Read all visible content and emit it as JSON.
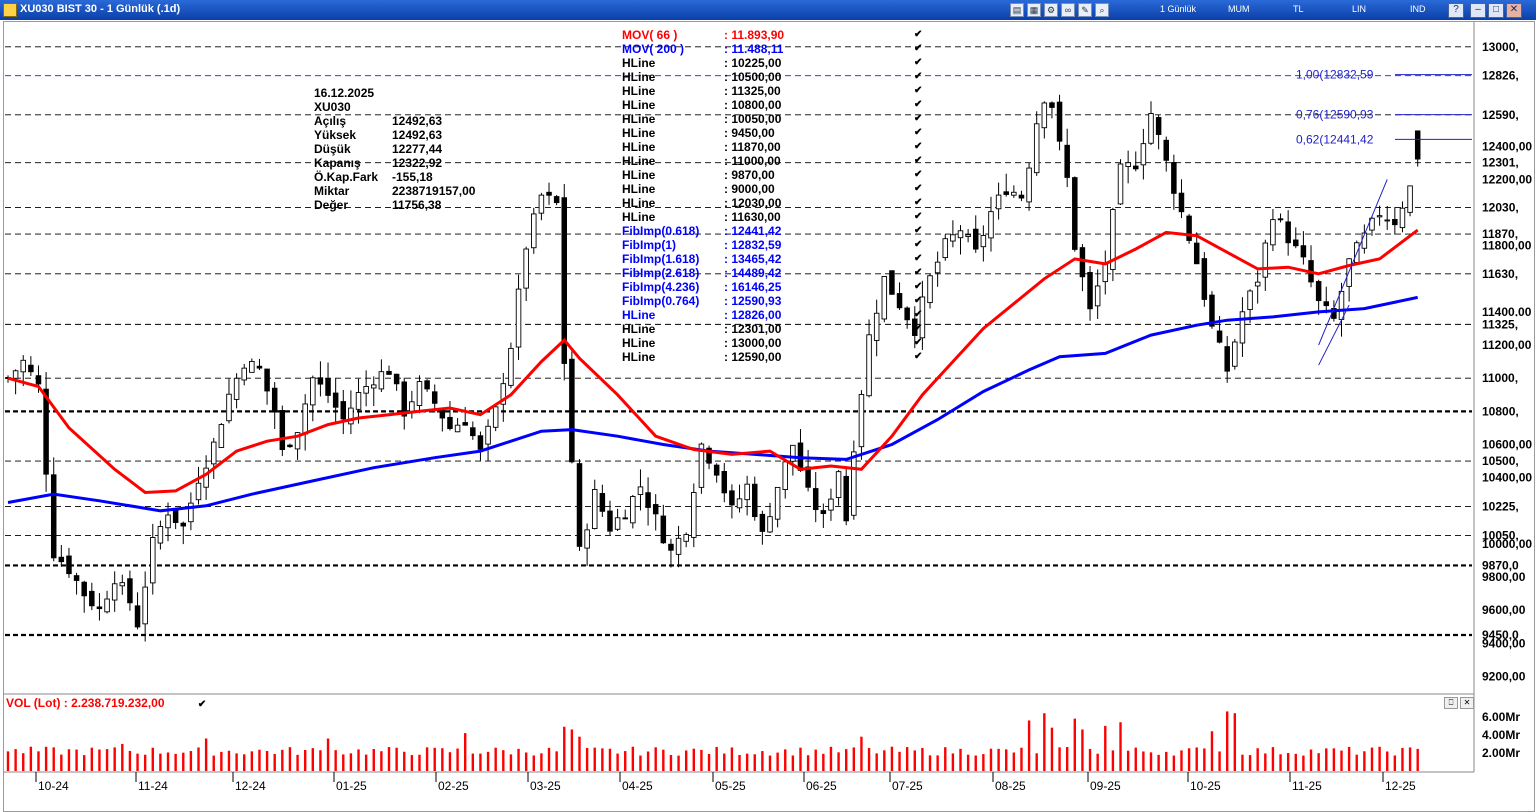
{
  "window": {
    "title": "XU030 BIST 30 - 1 Günlük (.1d)",
    "menu": [
      "1 Günlük",
      "MUM",
      "TL",
      "LIN",
      "IND"
    ]
  },
  "colors": {
    "candle": "#000000",
    "mov66": "#ff0000",
    "mov200": "#0000ff",
    "volume": "#ff0000",
    "fib": "#2020c8"
  },
  "info_panel": {
    "date": "16.12.2025",
    "symbol": "XU030",
    "rows": [
      {
        "label": "Açılış",
        "value": "12492,63"
      },
      {
        "label": "Yüksek",
        "value": "12492,63"
      },
      {
        "label": "Düşük",
        "value": "12277,44"
      },
      {
        "label": "Kapanış",
        "value": "12322,92"
      },
      {
        "label": "Ö.Kap.Fark",
        "value": "-155,18"
      },
      {
        "label": "Miktar",
        "value": "2238719157,00"
      },
      {
        "label": "Değer",
        "value": "11756,38"
      }
    ]
  },
  "legend": [
    {
      "label": "MOV( 66 )",
      "value": ": 11.893,90",
      "color": "#ff0000"
    },
    {
      "label": "MOV( 200 )",
      "value": ": 11.488,11",
      "color": "#0000ff"
    },
    {
      "label": "HLine",
      "value": ": 10225,00",
      "color": "#000000"
    },
    {
      "label": "HLine",
      "value": ": 10500,00",
      "color": "#000000"
    },
    {
      "label": "HLine",
      "value": ": 11325,00",
      "color": "#000000"
    },
    {
      "label": "HLine",
      "value": ": 10800,00",
      "color": "#000000"
    },
    {
      "label": "HLine",
      "value": ": 10050,00",
      "color": "#000000"
    },
    {
      "label": "HLine",
      "value": ": 9450,00",
      "color": "#000000"
    },
    {
      "label": "HLine",
      "value": ": 11870,00",
      "color": "#000000"
    },
    {
      "label": "HLine",
      "value": ": 11000,00",
      "color": "#000000"
    },
    {
      "label": "HLine",
      "value": ": 9870,00",
      "color": "#000000"
    },
    {
      "label": "HLine",
      "value": ": 9000,00",
      "color": "#000000"
    },
    {
      "label": "HLine",
      "value": ": 12030,00",
      "color": "#000000"
    },
    {
      "label": "HLine",
      "value": ": 11630,00",
      "color": "#000000"
    },
    {
      "label": "FibImp(0.618)",
      "value": ": 12441,42",
      "color": "#0000ff"
    },
    {
      "label": "FibImp(1)",
      "value": ": 12832,59",
      "color": "#0000ff"
    },
    {
      "label": "FibImp(1.618)",
      "value": ": 13465,42",
      "color": "#0000ff"
    },
    {
      "label": "FibImp(2.618)",
      "value": ": 14489,42",
      "color": "#0000ff"
    },
    {
      "label": "FibImp(4.236)",
      "value": ": 16146,25",
      "color": "#0000ff"
    },
    {
      "label": "FibImp(0.764)",
      "value": ": 12590,93",
      "color": "#0000ff"
    },
    {
      "label": "HLine",
      "value": ": 12826,00",
      "color": "#0000ff"
    },
    {
      "label": "HLine",
      "value": ": 12301,00",
      "color": "#000000"
    },
    {
      "label": "HLine",
      "value": ": 13000,00",
      "color": "#000000"
    },
    {
      "label": "HLine",
      "value": ": 12590,00",
      "color": "#000000"
    }
  ],
  "fib_labels": [
    {
      "text": "1,00(12832,59",
      "price": 12832.59
    },
    {
      "text": "0,76(12590,93",
      "price": 12590.93
    },
    {
      "text": "0,62(12441,42",
      "price": 12441.42
    }
  ],
  "volume_panel": {
    "label": "VOL (Lot)",
    "value": ": 2.238.719.232,00"
  },
  "chart_data": {
    "type": "candlestick",
    "symbol": "XU030",
    "timeframe": "1 Günlük",
    "y_range": [
      9100,
      13150
    ],
    "y_ticks": [
      {
        "v": 13000,
        "t": "13000,"
      },
      {
        "v": 12826,
        "t": "12826,"
      },
      {
        "v": 12590,
        "t": "12590,"
      },
      {
        "v": 12400,
        "t": "12400,00"
      },
      {
        "v": 12301,
        "t": "12301,"
      },
      {
        "v": 12200,
        "t": "12200,00"
      },
      {
        "v": 12030,
        "t": "12030,"
      },
      {
        "v": 11870,
        "t": "11870,"
      },
      {
        "v": 11800,
        "t": "11800,00"
      },
      {
        "v": 11630,
        "t": "11630,"
      },
      {
        "v": 11400,
        "t": "11400,00"
      },
      {
        "v": 11325,
        "t": "11325,"
      },
      {
        "v": 11200,
        "t": "11200,00"
      },
      {
        "v": 11000,
        "t": "11000,"
      },
      {
        "v": 10800,
        "t": "10800,"
      },
      {
        "v": 10600,
        "t": "10600,00"
      },
      {
        "v": 10500,
        "t": "10500,"
      },
      {
        "v": 10400,
        "t": "10400,00"
      },
      {
        "v": 10225,
        "t": "10225,"
      },
      {
        "v": 10050,
        "t": "10050,"
      },
      {
        "v": 10000,
        "t": "10000,00"
      },
      {
        "v": 9870,
        "t": "9870,0"
      },
      {
        "v": 9800,
        "t": "9800,00"
      },
      {
        "v": 9600,
        "t": "9600,00"
      },
      {
        "v": 9450,
        "t": "9450,0"
      },
      {
        "v": 9400,
        "t": "9400,00"
      },
      {
        "v": 9200,
        "t": "9200,00"
      }
    ],
    "x_labels": [
      "10-24",
      "11-24",
      "12-24",
      "01-25",
      "02-25",
      "03-25",
      "04-25",
      "05-25",
      "06-25",
      "07-25",
      "08-25",
      "09-25",
      "10-25",
      "11-25",
      "12-25"
    ],
    "hlines": [
      {
        "v": 13000,
        "style": "thin"
      },
      {
        "v": 12826,
        "style": "thin-blue"
      },
      {
        "v": 12590,
        "style": "thin"
      },
      {
        "v": 12301,
        "style": "thin"
      },
      {
        "v": 12030,
        "style": "thin"
      },
      {
        "v": 11870,
        "style": "thin"
      },
      {
        "v": 11630,
        "style": "thin"
      },
      {
        "v": 11325,
        "style": "thin"
      },
      {
        "v": 11000,
        "style": "thin"
      },
      {
        "v": 10800,
        "style": "thick"
      },
      {
        "v": 10500,
        "style": "thin"
      },
      {
        "v": 10225,
        "style": "thin"
      },
      {
        "v": 10050,
        "style": "thin"
      },
      {
        "v": 9870,
        "style": "thick"
      },
      {
        "v": 9450,
        "style": "thick"
      }
    ],
    "close_path": [
      [
        0,
        11000
      ],
      [
        2,
        11100
      ],
      [
        4,
        10950
      ],
      [
        6,
        9950
      ],
      [
        8,
        9850
      ],
      [
        10,
        9700
      ],
      [
        12,
        9600
      ],
      [
        14,
        9800
      ],
      [
        16,
        9650
      ],
      [
        17,
        9520
      ],
      [
        19,
        10000
      ],
      [
        21,
        10200
      ],
      [
        23,
        10100
      ],
      [
        25,
        10400
      ],
      [
        27,
        10600
      ],
      [
        29,
        10900
      ],
      [
        31,
        11100
      ],
      [
        33,
        11050
      ],
      [
        35,
        10800
      ],
      [
        36,
        10550
      ],
      [
        38,
        10700
      ],
      [
        40,
        11000
      ],
      [
        42,
        10900
      ],
      [
        44,
        10750
      ],
      [
        46,
        10900
      ],
      [
        48,
        11000
      ],
      [
        50,
        11050
      ],
      [
        52,
        10800
      ],
      [
        54,
        10950
      ],
      [
        56,
        10850
      ],
      [
        58,
        10700
      ],
      [
        60,
        10750
      ],
      [
        62,
        10550
      ],
      [
        64,
        10800
      ],
      [
        66,
        11200
      ],
      [
        68,
        11800
      ],
      [
        70,
        12100
      ],
      [
        72,
        12050
      ],
      [
        73,
        11100
      ],
      [
        74,
        10500
      ],
      [
        75,
        9950
      ],
      [
        77,
        10300
      ],
      [
        79,
        10100
      ],
      [
        81,
        10200
      ],
      [
        83,
        10350
      ],
      [
        85,
        10150
      ],
      [
        87,
        9950
      ],
      [
        89,
        10100
      ],
      [
        91,
        10600
      ],
      [
        93,
        10450
      ],
      [
        95,
        10200
      ],
      [
        97,
        10350
      ],
      [
        99,
        10050
      ],
      [
        101,
        10350
      ],
      [
        103,
        10600
      ],
      [
        105,
        10300
      ],
      [
        107,
        10150
      ],
      [
        109,
        10450
      ],
      [
        110,
        10150
      ],
      [
        111,
        10600
      ],
      [
        113,
        11250
      ],
      [
        115,
        11600
      ],
      [
        117,
        11450
      ],
      [
        119,
        11300
      ],
      [
        121,
        11600
      ],
      [
        123,
        11800
      ],
      [
        125,
        11900
      ],
      [
        127,
        11750
      ],
      [
        129,
        12000
      ],
      [
        131,
        12150
      ],
      [
        133,
        12100
      ],
      [
        134,
        12300
      ],
      [
        135,
        12550
      ],
      [
        136,
        12700
      ],
      [
        137,
        12650
      ],
      [
        138,
        12400
      ],
      [
        139,
        12200
      ],
      [
        140,
        11800
      ],
      [
        141,
        11600
      ],
      [
        142,
        11400
      ],
      [
        144,
        11700
      ],
      [
        146,
        12250
      ],
      [
        148,
        12300
      ],
      [
        150,
        12600
      ],
      [
        152,
        12300
      ],
      [
        154,
        12000
      ],
      [
        156,
        11700
      ],
      [
        158,
        11300
      ],
      [
        160,
        11050
      ],
      [
        162,
        11400
      ],
      [
        164,
        11600
      ],
      [
        166,
        12000
      ],
      [
        168,
        11850
      ],
      [
        170,
        11700
      ],
      [
        172,
        11450
      ],
      [
        174,
        11350
      ],
      [
        176,
        11700
      ],
      [
        178,
        11850
      ],
      [
        180,
        12000
      ],
      [
        182,
        11950
      ],
      [
        184,
        12150
      ],
      [
        185,
        12320
      ]
    ],
    "mov66_path": [
      [
        0,
        11000
      ],
      [
        4,
        10950
      ],
      [
        8,
        10700
      ],
      [
        14,
        10450
      ],
      [
        18,
        10310
      ],
      [
        22,
        10320
      ],
      [
        26,
        10420
      ],
      [
        30,
        10560
      ],
      [
        34,
        10620
      ],
      [
        38,
        10650
      ],
      [
        42,
        10720
      ],
      [
        46,
        10760
      ],
      [
        50,
        10780
      ],
      [
        54,
        10800
      ],
      [
        58,
        10820
      ],
      [
        62,
        10780
      ],
      [
        66,
        10900
      ],
      [
        70,
        11100
      ],
      [
        73,
        11230
      ],
      [
        75,
        11120
      ],
      [
        80,
        10900
      ],
      [
        85,
        10650
      ],
      [
        90,
        10570
      ],
      [
        95,
        10540
      ],
      [
        100,
        10560
      ],
      [
        104,
        10450
      ],
      [
        108,
        10470
      ],
      [
        112,
        10450
      ],
      [
        116,
        10650
      ],
      [
        120,
        10900
      ],
      [
        124,
        11100
      ],
      [
        128,
        11300
      ],
      [
        132,
        11450
      ],
      [
        136,
        11600
      ],
      [
        140,
        11720
      ],
      [
        144,
        11690
      ],
      [
        148,
        11780
      ],
      [
        152,
        11880
      ],
      [
        156,
        11860
      ],
      [
        160,
        11760
      ],
      [
        164,
        11660
      ],
      [
        168,
        11670
      ],
      [
        172,
        11630
      ],
      [
        176,
        11680
      ],
      [
        180,
        11720
      ],
      [
        185,
        11894
      ]
    ],
    "mov200_path": [
      [
        0,
        10250
      ],
      [
        6,
        10300
      ],
      [
        12,
        10260
      ],
      [
        20,
        10200
      ],
      [
        26,
        10230
      ],
      [
        32,
        10300
      ],
      [
        40,
        10380
      ],
      [
        48,
        10460
      ],
      [
        56,
        10520
      ],
      [
        62,
        10560
      ],
      [
        66,
        10620
      ],
      [
        70,
        10680
      ],
      [
        74,
        10690
      ],
      [
        80,
        10650
      ],
      [
        86,
        10600
      ],
      [
        92,
        10560
      ],
      [
        98,
        10540
      ],
      [
        104,
        10520
      ],
      [
        110,
        10510
      ],
      [
        116,
        10600
      ],
      [
        122,
        10750
      ],
      [
        128,
        10920
      ],
      [
        134,
        11050
      ],
      [
        138,
        11130
      ],
      [
        144,
        11150
      ],
      [
        150,
        11260
      ],
      [
        156,
        11320
      ],
      [
        160,
        11350
      ],
      [
        166,
        11370
      ],
      [
        172,
        11400
      ],
      [
        178,
        11420
      ],
      [
        185,
        11488
      ]
    ],
    "trendline": [
      [
        172,
        11200
      ],
      [
        181,
        12200
      ]
    ],
    "last_candle": {
      "open": 12492.63,
      "high": 12492.63,
      "low": 12277.44,
      "close": 12322.92
    },
    "volume": {
      "unit": "Mr",
      "y_ticks": [
        {
          "v": 6,
          "t": "6.00Mr"
        },
        {
          "v": 4,
          "t": "4.00Mr"
        },
        {
          "v": 2,
          "t": "2.00Mr"
        }
      ],
      "y_max": 7.2,
      "base": 2.0,
      "spikes": [
        {
          "i": 15,
          "v": 3.0
        },
        {
          "i": 26,
          "v": 3.6
        },
        {
          "i": 42,
          "v": 3.6
        },
        {
          "i": 60,
          "v": 4.2
        },
        {
          "i": 73,
          "v": 4.9
        },
        {
          "i": 74,
          "v": 4.6
        },
        {
          "i": 75,
          "v": 3.8
        },
        {
          "i": 112,
          "v": 3.8
        },
        {
          "i": 134,
          "v": 5.6
        },
        {
          "i": 136,
          "v": 6.4
        },
        {
          "i": 137,
          "v": 4.8
        },
        {
          "i": 140,
          "v": 5.8
        },
        {
          "i": 141,
          "v": 4.6
        },
        {
          "i": 144,
          "v": 5.0
        },
        {
          "i": 146,
          "v": 5.4
        },
        {
          "i": 158,
          "v": 4.4
        },
        {
          "i": 160,
          "v": 6.6
        },
        {
          "i": 161,
          "v": 6.4
        }
      ]
    }
  }
}
